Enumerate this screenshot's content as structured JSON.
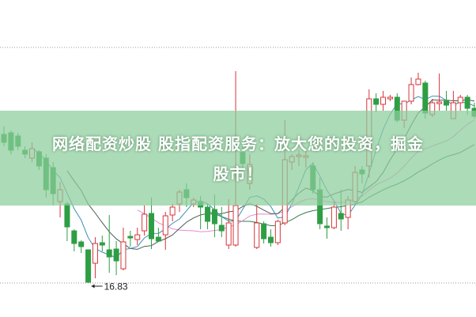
{
  "chart_data": {
    "type": "candlestick",
    "ylim": [
      16.83,
      22.79
    ],
    "grid": "dotted horizontal lines at top and bottom",
    "colors": {
      "up": "#d9343a",
      "down": "#2e9e44",
      "ma5": "#3d8fb5",
      "ma10": "#4a5a50",
      "ma20": "#e58ad8",
      "ma30": "#2f7d4f",
      "grid": "#999999"
    },
    "moving_averages": [
      "ma5",
      "ma10",
      "ma20",
      "ma30"
    ],
    "annotation": {
      "label": "16.83",
      "value": 16.83,
      "arrow": "left"
    },
    "ohlc": [
      [
        20.59,
        20.39,
        20.79,
        20.29
      ],
      [
        20.63,
        20.19,
        20.69,
        20.09
      ],
      [
        20.55,
        20.29,
        20.63,
        20.19
      ],
      [
        20.19,
        20.09,
        20.29,
        19.99
      ],
      [
        19.99,
        20.23,
        20.39,
        19.89
      ],
      [
        20.15,
        19.79,
        20.19,
        19.69
      ],
      [
        19.99,
        19.19,
        20.09,
        18.99
      ],
      [
        19.75,
        19.09,
        19.89,
        18.79
      ],
      [
        18.89,
        19.19,
        19.39,
        18.49
      ],
      [
        18.83,
        18.25,
        18.89,
        17.89
      ],
      [
        18.15,
        17.83,
        18.19,
        17.63
      ],
      [
        17.87,
        17.75,
        17.91,
        17.59
      ],
      [
        17.67,
        16.85,
        17.67,
        16.83
      ],
      [
        17.33,
        17.83,
        17.99,
        16.95
      ],
      [
        17.85,
        17.79,
        18.03,
        17.63
      ],
      [
        17.67,
        17.49,
        18.55,
        17.09
      ],
      [
        17.69,
        17.39,
        17.89,
        17.03
      ],
      [
        17.19,
        17.87,
        18.23,
        17.15
      ],
      [
        18.01,
        17.97,
        18.15,
        17.75
      ],
      [
        17.93,
        18.05,
        18.23,
        17.79
      ],
      [
        18.15,
        18.57,
        18.79,
        18.03
      ],
      [
        18.59,
        17.95,
        18.99,
        17.69
      ],
      [
        17.99,
        17.89,
        18.23,
        17.87
      ],
      [
        18.05,
        18.53,
        18.63,
        17.67
      ],
      [
        18.55,
        18.75,
        18.83,
        18.39
      ],
      [
        18.83,
        19.13,
        19.19,
        18.63
      ],
      [
        19.19,
        18.99,
        19.35,
        18.75
      ],
      [
        18.83,
        18.93,
        18.99,
        18.75
      ],
      [
        18.87,
        18.75,
        19.03,
        18.19
      ],
      [
        18.75,
        18.39,
        18.83,
        18.19
      ],
      [
        18.69,
        18.33,
        19.07,
        17.99
      ],
      [
        18.29,
        18.15,
        18.75,
        17.99
      ],
      [
        17.79,
        18.35,
        18.95,
        17.69
      ],
      [
        17.79,
        18.79,
        22.19,
        17.75
      ],
      [
        20.13,
        19.85,
        20.29,
        19.69
      ],
      [
        19.35,
        19.83,
        20.09,
        19.19
      ],
      [
        17.73,
        18.35,
        18.83,
        17.69
      ],
      [
        18.33,
        17.95,
        18.39,
        17.83
      ],
      [
        17.99,
        17.85,
        18.19,
        17.75
      ],
      [
        17.85,
        18.39,
        18.43,
        17.79
      ],
      [
        18.35,
        19.95,
        20.95,
        18.29
      ],
      [
        19.89,
        20.03,
        20.09,
        19.69
      ],
      [
        20.03,
        20.07,
        20.19,
        19.79
      ],
      [
        20.01,
        20.05,
        20.19,
        19.75
      ],
      [
        19.79,
        19.19,
        19.89,
        19.09
      ],
      [
        19.19,
        18.33,
        19.49,
        18.19
      ],
      [
        18.27,
        18.23,
        18.49,
        17.95
      ],
      [
        18.23,
        18.75,
        18.89,
        18.19
      ],
      [
        18.59,
        18.45,
        19.19,
        18.15
      ],
      [
        18.49,
        18.93,
        19.03,
        18.19
      ],
      [
        18.89,
        19.63,
        19.79,
        18.79
      ],
      [
        19.69,
        19.59,
        19.79,
        19.35
      ],
      [
        19.79,
        21.49,
        21.73,
        19.49
      ],
      [
        21.49,
        21.35,
        21.63,
        21.15
      ],
      [
        21.35,
        21.53,
        21.69,
        21.19
      ],
      [
        21.49,
        21.53,
        21.59,
        21.43
      ],
      [
        21.53,
        20.95,
        21.63,
        20.89
      ],
      [
        20.95,
        21.43,
        21.43,
        20.75
      ],
      [
        21.43,
        21.85,
        22.03,
        21.35
      ],
      [
        21.85,
        21.99,
        22.15,
        21.83
      ],
      [
        21.89,
        21.13,
        21.95,
        20.99
      ],
      [
        21.09,
        21.39,
        21.49,
        21.03
      ],
      [
        21.37,
        21.41,
        22.13,
        21.19
      ],
      [
        21.43,
        21.33,
        21.69,
        21.19
      ],
      [
        20.99,
        21.39,
        21.69,
        20.99
      ],
      [
        21.39,
        21.53,
        21.59,
        21.19
      ],
      [
        21.53,
        21.25,
        21.59,
        21.09
      ],
      [
        21.25,
        21.05,
        21.39,
        20.99
      ]
    ]
  },
  "overlay": {
    "line1": "网络配资炒股 股指配资服务：放大您的投资，掘金",
    "line2": "股市！"
  }
}
